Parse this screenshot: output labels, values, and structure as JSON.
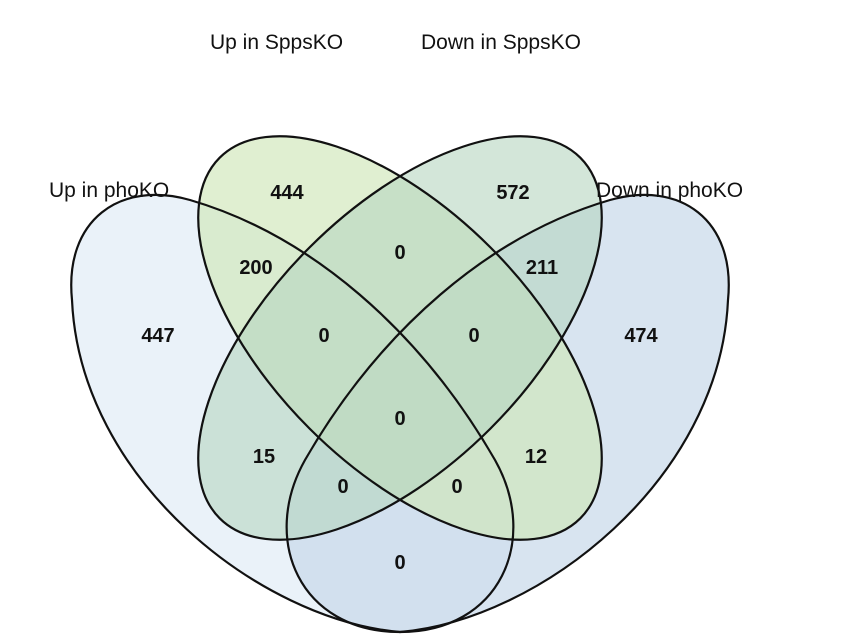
{
  "sets": [
    {
      "key": "upSpps",
      "label": "Up in SppsKO",
      "color": "#cfe6b8"
    },
    {
      "key": "downSpps",
      "label": "Down in SppsKO",
      "color": "#b6d5c0"
    },
    {
      "key": "upPho",
      "label": "Up in phoKO",
      "color": "#e8f1f8"
    },
    {
      "key": "downPho",
      "label": "Down in phoKO",
      "color": "#c7d8e9"
    }
  ],
  "regions": [
    {
      "name": "only-upSpps",
      "value": "444"
    },
    {
      "name": "only-downSpps",
      "value": "572"
    },
    {
      "name": "only-upPho",
      "value": "447"
    },
    {
      "name": "only-downPho",
      "value": "474"
    },
    {
      "name": "upPho-upSpps",
      "value": "200"
    },
    {
      "name": "upSpps-downSpps",
      "value": "0"
    },
    {
      "name": "downSpps-downPho",
      "value": "211"
    },
    {
      "name": "upPho-upSpps-downSpps",
      "value": "0"
    },
    {
      "name": "upSpps-downSpps-downPho",
      "value": "0"
    },
    {
      "name": "all-four",
      "value": "0"
    },
    {
      "name": "upPho-downSpps",
      "value": "15"
    },
    {
      "name": "upSpps-downPho",
      "value": "12"
    },
    {
      "name": "upPho-downSpps-downPho",
      "value": "0"
    },
    {
      "name": "upPho-upSpps-downPho",
      "value": "0"
    },
    {
      "name": "upPho-downPho",
      "value": "0"
    }
  ]
}
